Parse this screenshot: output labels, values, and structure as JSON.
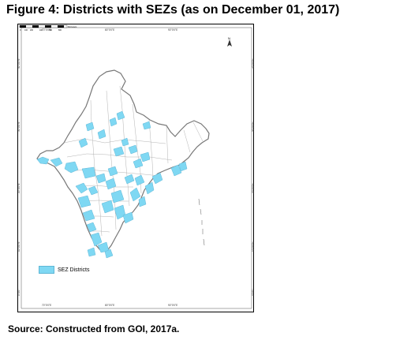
{
  "figure": {
    "title": "Figure 4: Districts with SEZs (as on December 01, 2017)",
    "source": "Source: Constructed from GOI, 2017a."
  },
  "map": {
    "type": "choropleth",
    "region": "India",
    "legend": {
      "label": "SEZ Districts",
      "color": "#7fd8f3"
    },
    "north_label": "N",
    "longitude_labels": [
      "70°0'0\"E",
      "80°0'0\"E",
      "90°0'0\"E"
    ],
    "latitude_labels": [
      "40°0'0\"N",
      "30°0'0\"N",
      "20°0'0\"N",
      "10°0'0\"N",
      "0°0'0\""
    ],
    "scale_labels": [
      "0",
      "100",
      "200",
      "400",
      "600",
      "800",
      "Kilometers"
    ]
  },
  "colors": {
    "background": "#ffffff",
    "district_fill": "#ffffff",
    "boundary": "#777777",
    "sez": "#7fd8f3"
  },
  "icons": {
    "north_arrow": "north-arrow-icon"
  }
}
